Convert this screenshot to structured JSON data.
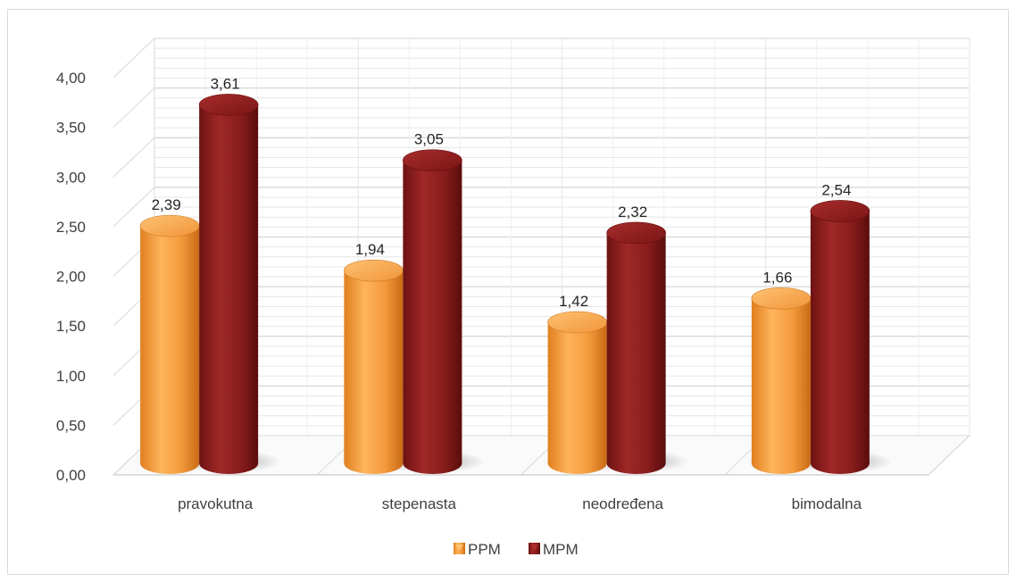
{
  "chart_data": {
    "type": "bar",
    "title": "",
    "xlabel": "",
    "ylabel": "",
    "categories": [
      "pravokutna",
      "stepenasta",
      "neodređena",
      "bimodalna"
    ],
    "series": [
      {
        "name": "PPM",
        "values": [
          2.39,
          1.94,
          1.42,
          1.66
        ],
        "color": "#f4a246"
      },
      {
        "name": "MPM",
        "values": [
          3.61,
          3.05,
          2.32,
          2.54
        ],
        "color": "#8b1e1e"
      }
    ],
    "ylim": [
      0,
      4
    ],
    "yticks": [
      "0,00",
      "0,50",
      "1,00",
      "1,50",
      "2,00",
      "2,50",
      "3,00",
      "3,50",
      "4,00"
    ],
    "data_labels": [
      [
        "2,39",
        "1,94",
        "1,42",
        "1,66"
      ],
      [
        "3,61",
        "3,05",
        "2,32",
        "2,54"
      ]
    ],
    "grid": true,
    "legend_position": "bottom",
    "style": "3d-cylinder"
  }
}
